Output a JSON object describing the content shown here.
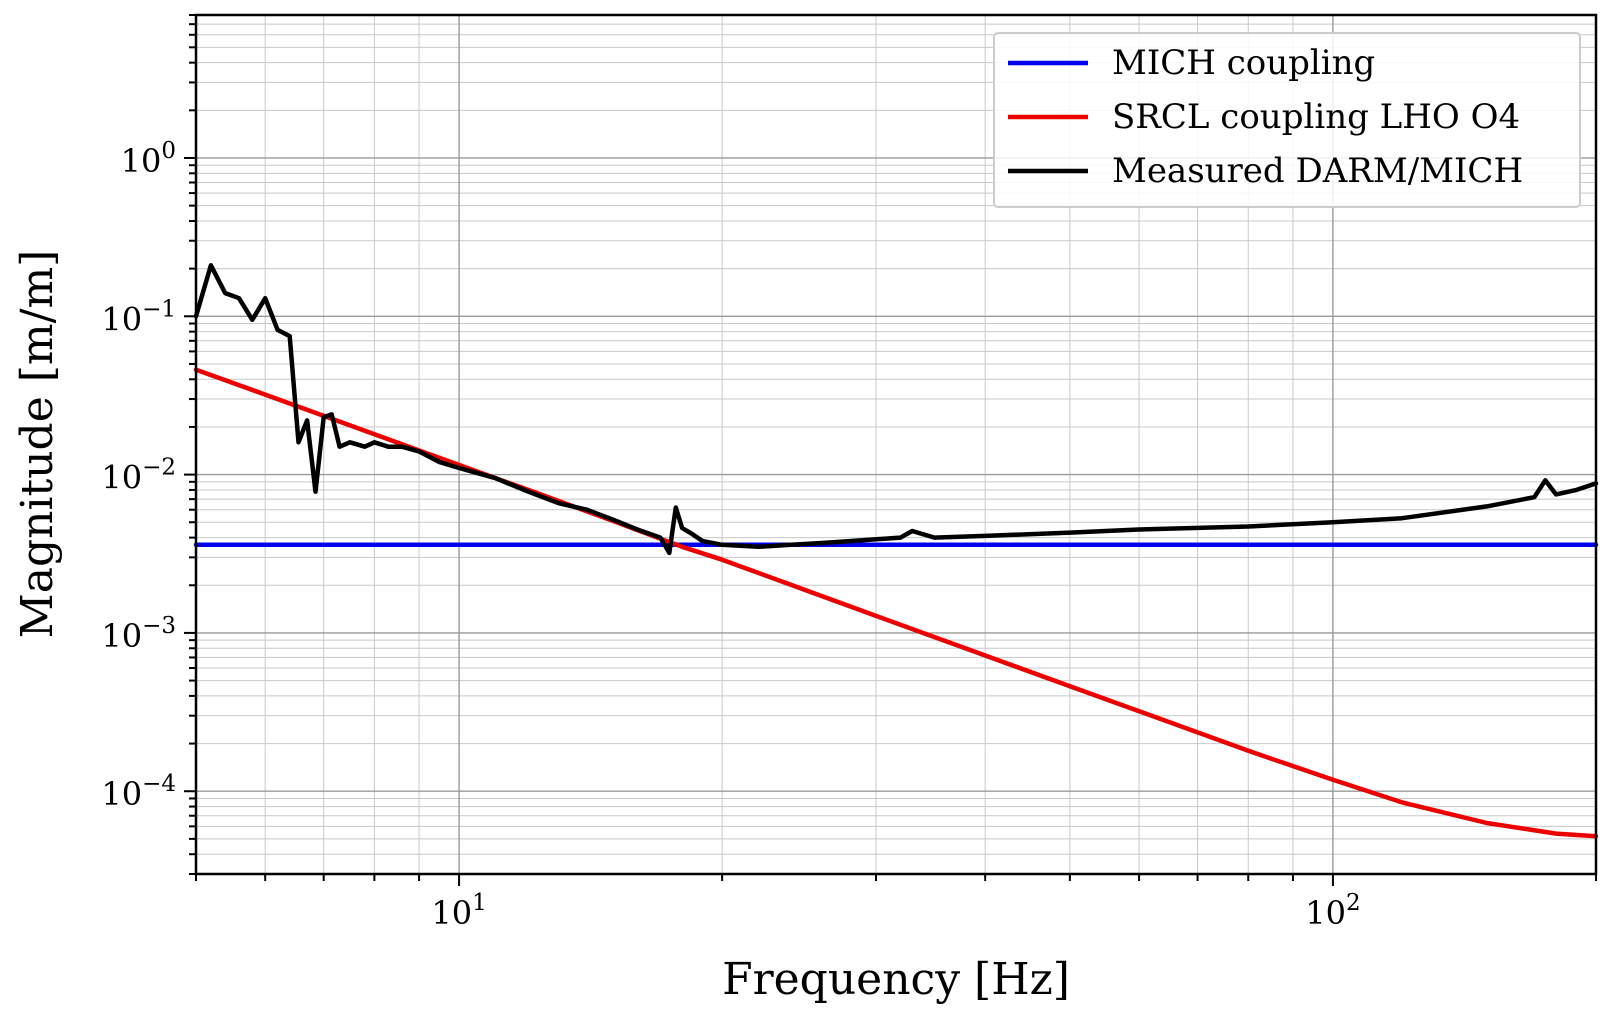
{
  "chart_data": {
    "type": "line",
    "title": "",
    "xlabel": "Frequency [Hz]",
    "ylabel": "Magnitude [m/m]",
    "xscale": "log",
    "yscale": "log",
    "xlim": [
      5,
      200
    ],
    "ylim": [
      3e-05,
      8
    ],
    "grid": "major and minor",
    "legend_position": "top-right",
    "x_ticks": [
      {
        "value": 10,
        "base": "10",
        "exp": "1"
      },
      {
        "value": 100,
        "base": "10",
        "exp": "2"
      }
    ],
    "y_ticks": [
      {
        "value": 0.0001,
        "base": "10",
        "exp": "−4"
      },
      {
        "value": 0.001,
        "base": "10",
        "exp": "−3"
      },
      {
        "value": 0.01,
        "base": "10",
        "exp": "−2"
      },
      {
        "value": 0.1,
        "base": "10",
        "exp": "−1"
      },
      {
        "value": 1,
        "base": "10",
        "exp": "0"
      }
    ],
    "series": [
      {
        "name": "MICH coupling",
        "color": "#0000ee",
        "x": [
          5,
          200
        ],
        "y": [
          0.0036,
          0.0036
        ]
      },
      {
        "name": "SRCL coupling LHO O4",
        "color": "#ee0000",
        "x": [
          5,
          6,
          8,
          10,
          12,
          15,
          18,
          20,
          25,
          30,
          40,
          50,
          60,
          80,
          100,
          120,
          150,
          180,
          200
        ],
        "y": [
          0.046,
          0.032,
          0.018,
          0.0115,
          0.008,
          0.0051,
          0.0035,
          0.0029,
          0.00185,
          0.00128,
          0.00072,
          0.00046,
          0.00032,
          0.00018,
          0.000118,
          8.5e-05,
          6.3e-05,
          5.4e-05,
          5.2e-05
        ]
      },
      {
        "name": "Measured DARM/MICH",
        "color": "#000000",
        "x": [
          5,
          5.2,
          5.4,
          5.6,
          5.8,
          6.0,
          6.2,
          6.4,
          6.55,
          6.7,
          6.85,
          7.0,
          7.15,
          7.3,
          7.5,
          7.8,
          8.0,
          8.3,
          8.6,
          9.0,
          9.5,
          10,
          11,
          12,
          13,
          14,
          15,
          16,
          17,
          17.4,
          17.7,
          18,
          18.5,
          19,
          20,
          22,
          24,
          26,
          28,
          30,
          32,
          33,
          35,
          40,
          50,
          60,
          80,
          100,
          120,
          150,
          170,
          175,
          180,
          190,
          200
        ],
        "y": [
          0.1,
          0.21,
          0.14,
          0.13,
          0.095,
          0.13,
          0.082,
          0.075,
          0.016,
          0.022,
          0.0078,
          0.023,
          0.024,
          0.015,
          0.016,
          0.015,
          0.016,
          0.015,
          0.015,
          0.014,
          0.012,
          0.011,
          0.0095,
          0.0078,
          0.0066,
          0.006,
          0.0052,
          0.0045,
          0.004,
          0.0032,
          0.0062,
          0.0046,
          0.0042,
          0.0038,
          0.0036,
          0.0035,
          0.0036,
          0.0037,
          0.0038,
          0.0039,
          0.004,
          0.0044,
          0.004,
          0.0041,
          0.0043,
          0.0045,
          0.0047,
          0.005,
          0.0053,
          0.0063,
          0.0072,
          0.0092,
          0.0075,
          0.008,
          0.0088
        ]
      }
    ]
  }
}
